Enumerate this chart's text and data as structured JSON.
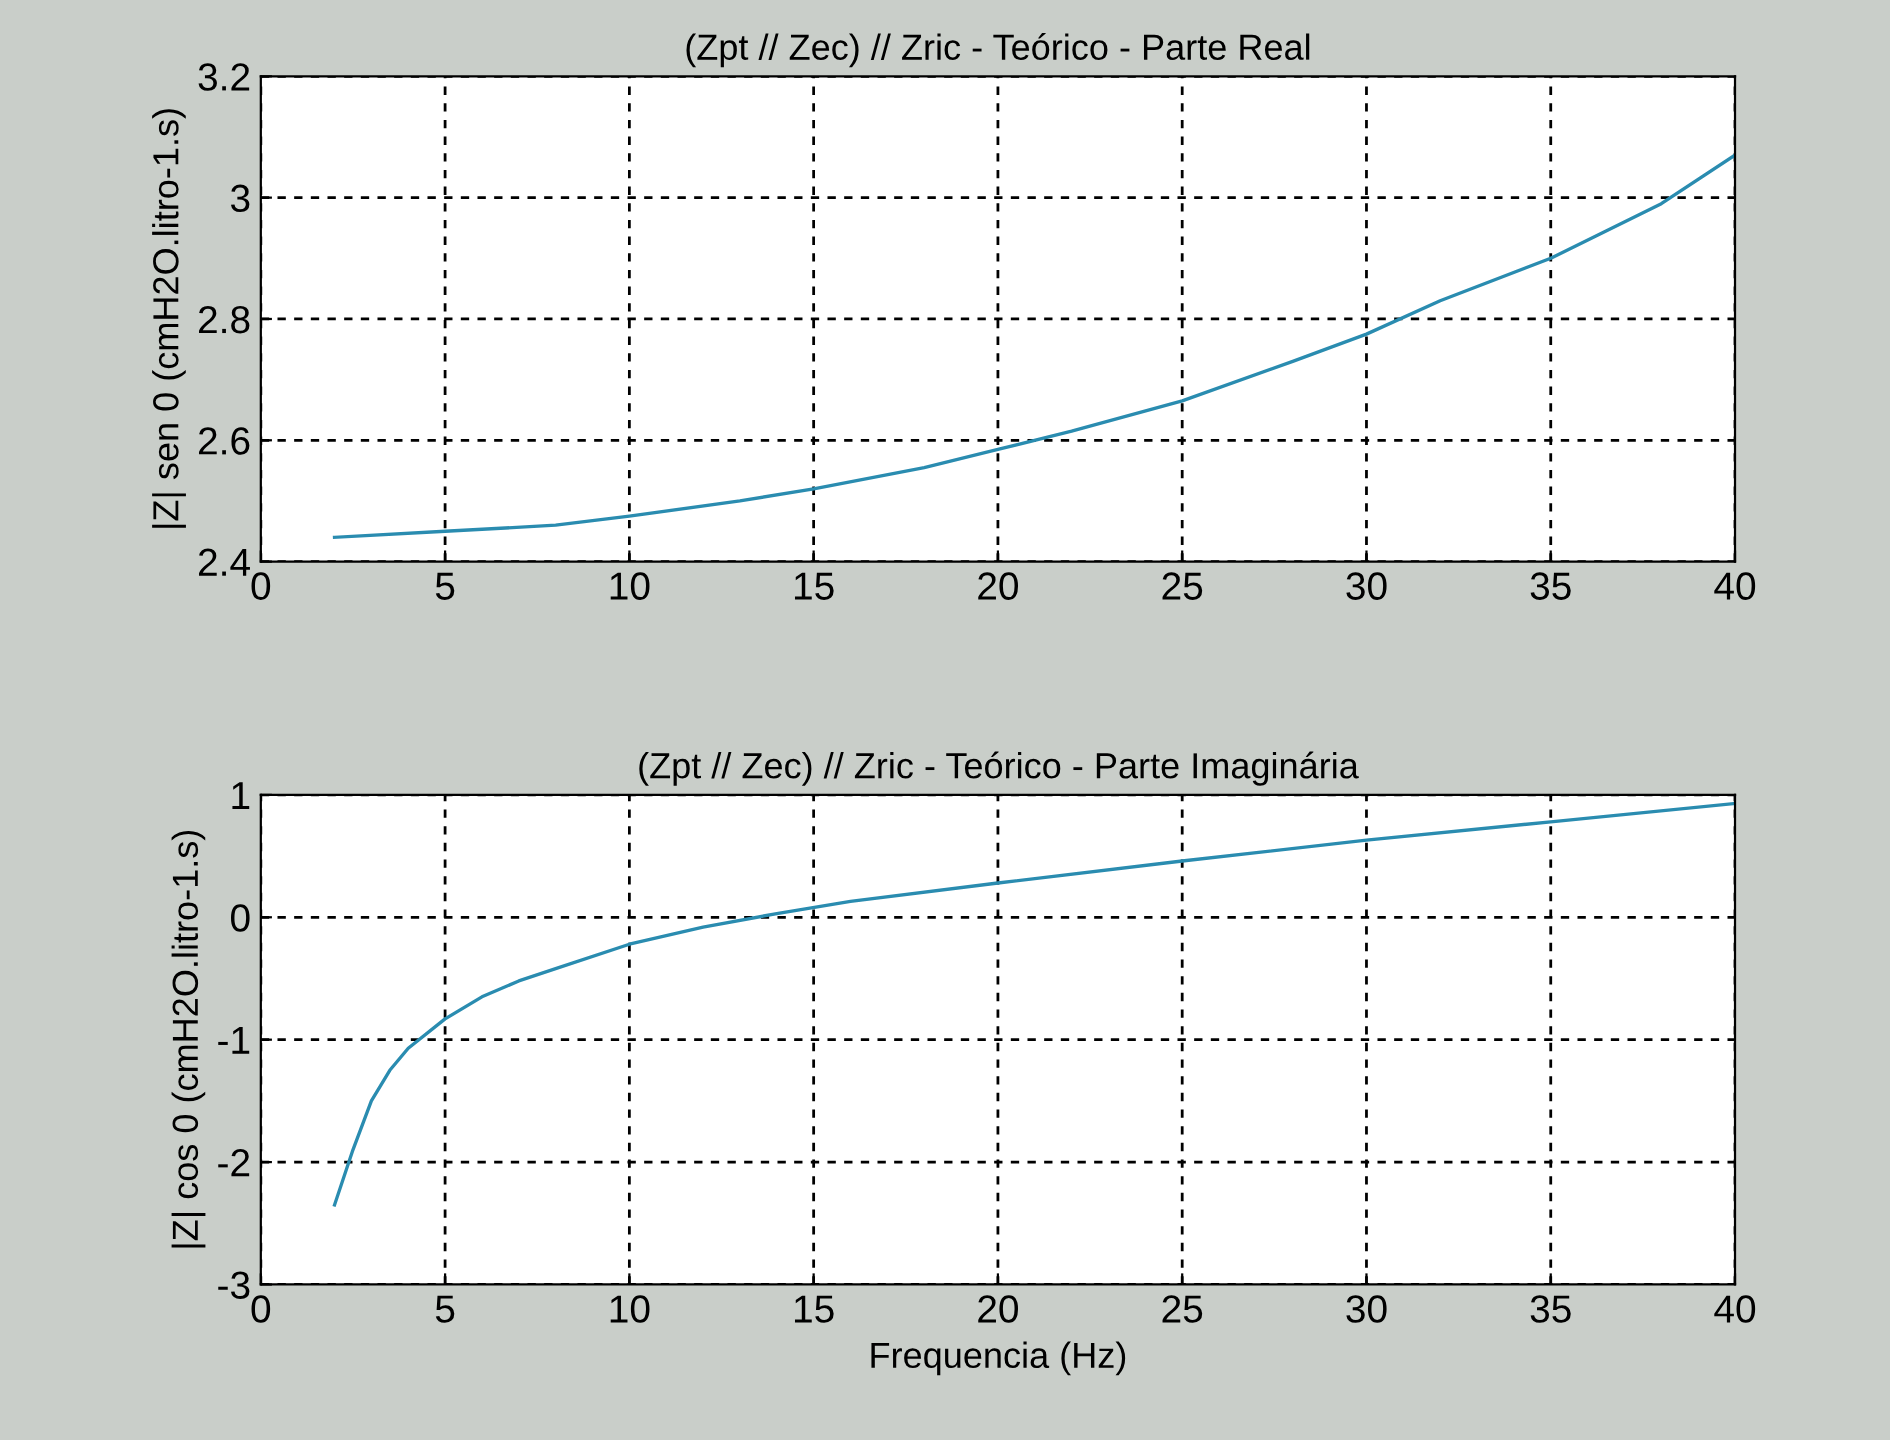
{
  "chart_data": [
    {
      "type": "line",
      "title": "(Zpt // Zec) // Zric - Teórico - Parte Real",
      "ylabel": "|Z| sen 0 (cmH2O.litro-1.s)",
      "series": [
        {
          "color": "#2a8cb0",
          "x": [
            2,
            5,
            8,
            10,
            13,
            15,
            18,
            20,
            22,
            25,
            28,
            30,
            32,
            35,
            38,
            40
          ],
          "values": [
            2.44,
            2.45,
            2.46,
            2.475,
            2.5,
            2.52,
            2.555,
            2.585,
            2.615,
            2.665,
            2.73,
            2.775,
            2.83,
            2.9,
            2.99,
            3.07
          ]
        }
      ],
      "xlim": [
        0,
        40
      ],
      "xticks": [
        0,
        5,
        10,
        15,
        20,
        25,
        30,
        35,
        40
      ],
      "ylim": [
        2.4,
        3.2
      ],
      "yticks": [
        2.4,
        2.6,
        2.8,
        3,
        3.2
      ],
      "grid": true,
      "line_style": "solid"
    },
    {
      "type": "line",
      "title": "(Zpt // Zec) // Zric - Teórico - Parte Imaginária",
      "xlabel": "Frequencia (Hz)",
      "ylabel": "|Z| cos 0 (cmH2O.litro-1.s)",
      "series": [
        {
          "color": "#2a8cb0",
          "x": [
            2,
            2.5,
            3,
            3.5,
            4,
            5,
            6,
            7,
            8,
            10,
            12,
            14,
            16,
            20,
            25,
            30,
            35,
            40
          ],
          "values": [
            -2.35,
            -1.9,
            -1.5,
            -1.25,
            -1.07,
            -0.83,
            -0.65,
            -0.52,
            -0.42,
            -0.22,
            -0.08,
            0.03,
            0.13,
            0.28,
            0.46,
            0.63,
            0.78,
            0.93
          ]
        }
      ],
      "xlim": [
        0,
        40
      ],
      "xticks": [
        0,
        5,
        10,
        15,
        20,
        25,
        30,
        35,
        40
      ],
      "ylim": [
        -3,
        1
      ],
      "yticks": [
        -3,
        -2,
        -1,
        0,
        1
      ],
      "grid": true,
      "line_style": "solid"
    }
  ]
}
